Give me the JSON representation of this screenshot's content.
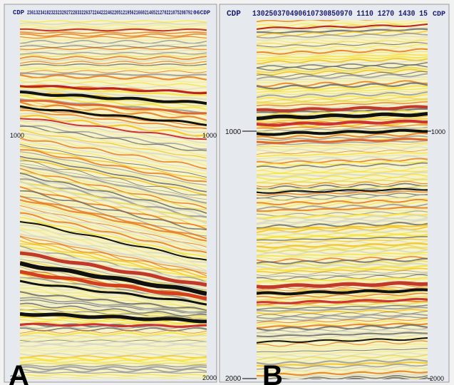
{
  "panel_a": {
    "header_left": "CDP",
    "header_numbers": "2361323418232323292722833226372244222462205121956216602146521270221075208792",
    "header_right": "06CDP",
    "depth_left": [
      "1000",
      "2000"
    ],
    "depth_right": [
      "1000",
      "2000"
    ],
    "letter": "A"
  },
  "panel_b": {
    "header_left": "CDP",
    "header_numbers": "130250370490610730850970 1110 1270 1430 15",
    "header_right": "CDP",
    "depth_left": [
      "1000",
      "2000"
    ],
    "depth_right": [
      "1000",
      "2000"
    ],
    "letter": "B"
  }
}
